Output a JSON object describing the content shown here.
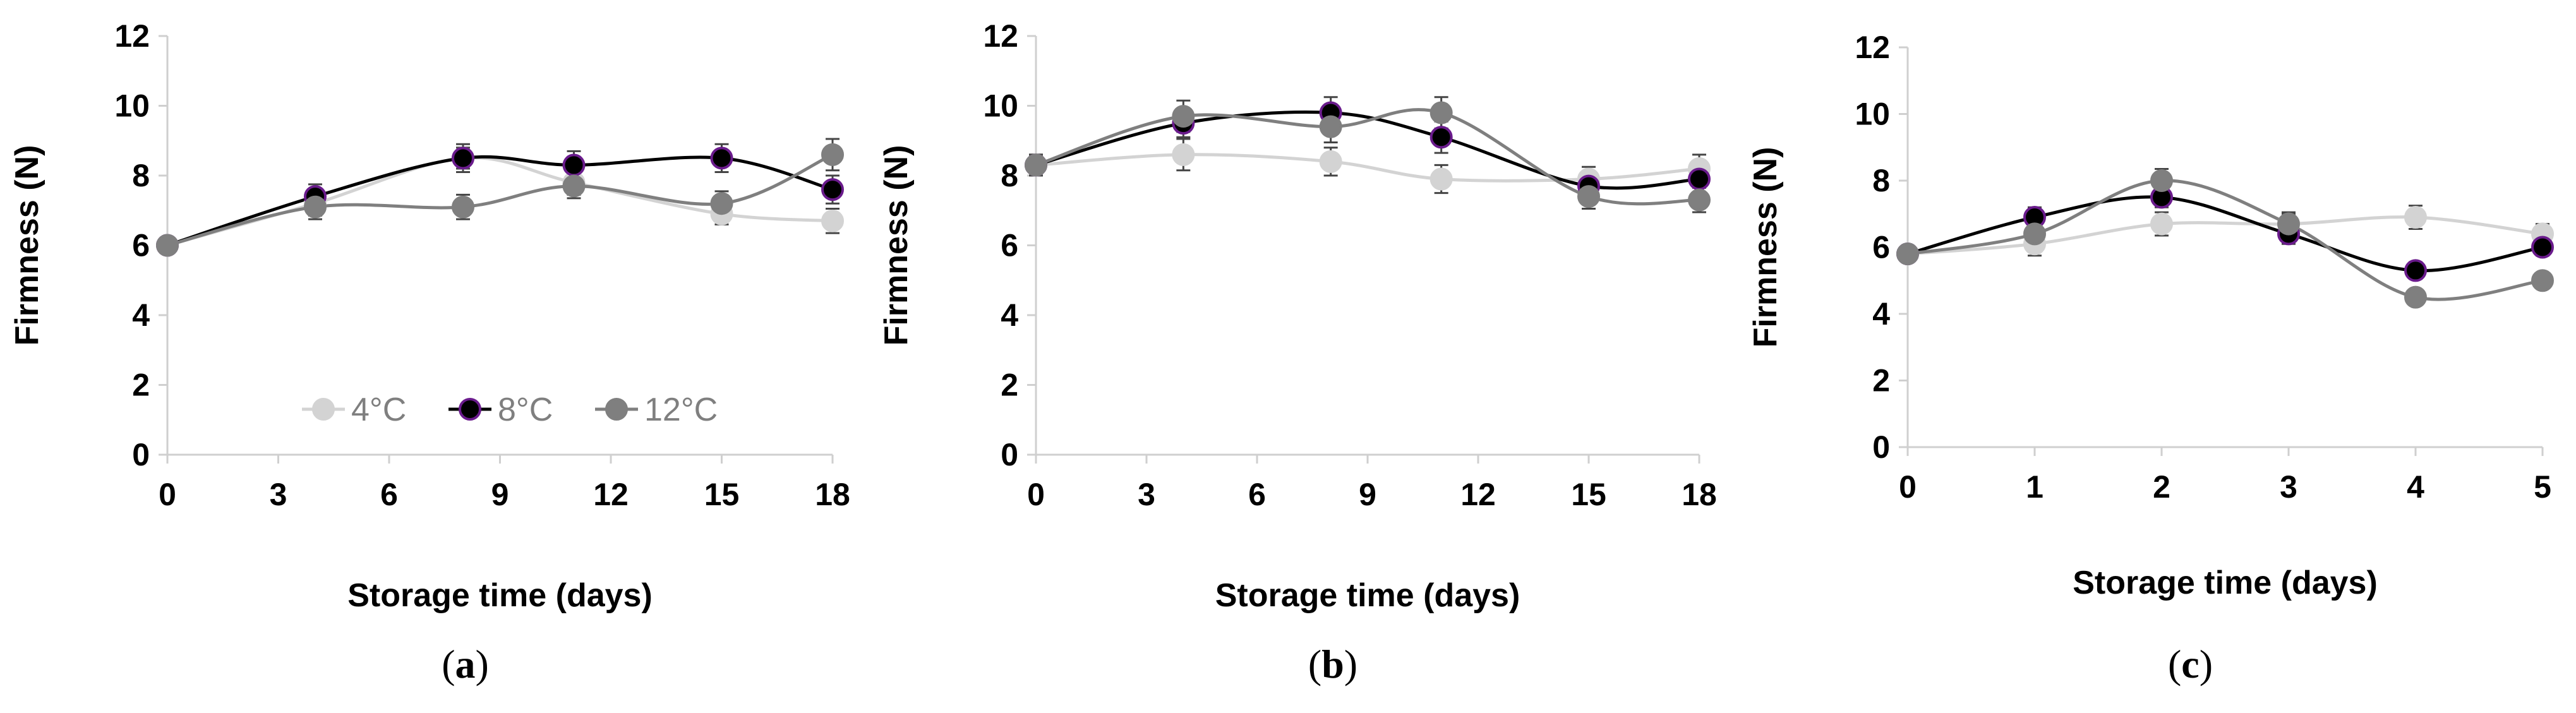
{
  "colors": {
    "4°C": "#d3d3d3",
    "8°C": "#000000",
    "8°C_edge": "#6a1b8c",
    "12°C": "#7f7f7f",
    "axis": "#cfcfcf",
    "error": "#444444"
  },
  "legend": {
    "items": [
      {
        "key": "4°C",
        "label": "4°C"
      },
      {
        "key": "8°C",
        "label": "8°C"
      },
      {
        "key": "12°C",
        "label": "12°C"
      }
    ]
  },
  "chart_data": [
    {
      "type": "line",
      "panel": "(a)",
      "panel_letter": "a",
      "xlabel": "Storage time (days)",
      "ylabel": "Firmness (N)",
      "xlim": [
        0,
        18
      ],
      "ylim": [
        0,
        12
      ],
      "xticks": [
        0,
        3,
        6,
        9,
        12,
        15,
        18
      ],
      "yticks": [
        0,
        2,
        4,
        6,
        8,
        10,
        12
      ],
      "x": [
        0,
        4,
        8,
        11,
        15,
        18
      ],
      "series": [
        {
          "name": "4°C",
          "values": [
            6.0,
            7.2,
            8.5,
            7.8,
            6.9,
            6.7
          ],
          "err": [
            0.15,
            0.35,
            0.3,
            0.35,
            0.3,
            0.35
          ]
        },
        {
          "name": "8°C",
          "values": [
            6.0,
            7.4,
            8.5,
            8.3,
            8.5,
            7.6
          ],
          "err": [
            0.15,
            0.35,
            0.4,
            0.4,
            0.4,
            0.4
          ]
        },
        {
          "name": "12°C",
          "values": [
            6.0,
            7.1,
            7.1,
            7.7,
            7.2,
            8.6
          ],
          "err": [
            0.15,
            0.35,
            0.35,
            0.35,
            0.35,
            0.45
          ]
        }
      ],
      "grid": false,
      "legend_position": "bottom-center"
    },
    {
      "type": "line",
      "panel": "(b)",
      "panel_letter": "b",
      "xlabel": "Storage time (days)",
      "ylabel": "Firmness (N)",
      "xlim": [
        0,
        18
      ],
      "ylim": [
        0,
        12
      ],
      "xticks": [
        0,
        3,
        6,
        9,
        12,
        15,
        18
      ],
      "yticks": [
        0,
        2,
        4,
        6,
        8,
        10,
        12
      ],
      "x": [
        0,
        4,
        8,
        11,
        15,
        18
      ],
      "series": [
        {
          "name": "4°C",
          "values": [
            8.3,
            8.6,
            8.4,
            7.9,
            7.9,
            8.2
          ],
          "err": [
            0.3,
            0.45,
            0.4,
            0.4,
            0.35,
            0.4
          ]
        },
        {
          "name": "8°C",
          "values": [
            8.3,
            9.5,
            9.8,
            9.1,
            7.7,
            7.9
          ],
          "err": [
            0.3,
            0.4,
            0.45,
            0.45,
            0.4,
            0.4
          ]
        },
        {
          "name": "12°C",
          "values": [
            8.3,
            9.7,
            9.4,
            9.8,
            7.4,
            7.3
          ],
          "err": [
            0.3,
            0.45,
            0.45,
            0.45,
            0.35,
            0.35
          ]
        }
      ],
      "grid": false
    },
    {
      "type": "line",
      "panel": "(c)",
      "panel_letter": "c",
      "xlabel": "Storage time (days)",
      "ylabel": "Firmness (N)",
      "xlim": [
        0,
        5
      ],
      "ylim": [
        0,
        12
      ],
      "xticks": [
        0,
        1,
        2,
        3,
        4,
        5
      ],
      "yticks": [
        0,
        2,
        4,
        6,
        8,
        10,
        12
      ],
      "x": [
        0,
        1,
        2,
        3,
        4,
        5
      ],
      "series": [
        {
          "name": "4°C",
          "values": [
            5.8,
            6.1,
            6.7,
            6.7,
            6.9,
            6.4
          ],
          "err": [
            0.2,
            0.35,
            0.35,
            0.35,
            0.35,
            0.3
          ]
        },
        {
          "name": "8°C",
          "values": [
            5.8,
            6.9,
            7.5,
            6.4,
            5.3,
            6.0
          ],
          "err": [
            0.2,
            0.3,
            0.3,
            0.3,
            0.25,
            0.25
          ]
        },
        {
          "name": "12°C",
          "values": [
            5.8,
            6.4,
            8.0,
            6.7,
            4.5,
            5.0
          ],
          "err": [
            0.2,
            0.3,
            0.35,
            0.3,
            0.2,
            0.2
          ]
        }
      ],
      "grid": false
    }
  ]
}
